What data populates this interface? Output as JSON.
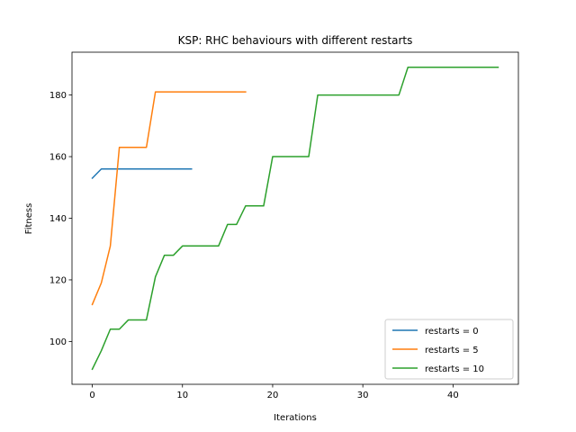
{
  "chart_data": {
    "type": "line",
    "title": "KSP: RHC behaviours with different restarts",
    "xlabel": "Iterations",
    "ylabel": "Fitness",
    "xlim": [
      -2.25,
      47.25
    ],
    "ylim": [
      86.1,
      193.9
    ],
    "xticks": [
      0,
      10,
      20,
      30,
      40
    ],
    "yticks": [
      100,
      120,
      140,
      160,
      180
    ],
    "grid": false,
    "legend_position": "lower-right",
    "series": [
      {
        "name": "restarts = 0",
        "color": "#1f77b4",
        "x": [
          0,
          1,
          2,
          3,
          4,
          5,
          6,
          7,
          8,
          9,
          10,
          11
        ],
        "y": [
          153,
          156,
          156,
          156,
          156,
          156,
          156,
          156,
          156,
          156,
          156,
          156
        ]
      },
      {
        "name": "restarts = 5",
        "color": "#ff7f0e",
        "x": [
          0,
          1,
          2,
          3,
          4,
          5,
          6,
          7,
          8,
          9,
          10,
          11,
          12,
          13,
          14,
          15,
          16,
          17
        ],
        "y": [
          112,
          119,
          131,
          163,
          163,
          163,
          163,
          181,
          181,
          181,
          181,
          181,
          181,
          181,
          181,
          181,
          181,
          181
        ]
      },
      {
        "name": "restarts = 10",
        "color": "#2ca02c",
        "x": [
          0,
          1,
          2,
          3,
          4,
          5,
          6,
          7,
          8,
          9,
          10,
          11,
          12,
          13,
          14,
          15,
          16,
          17,
          18,
          19,
          20,
          21,
          22,
          23,
          24,
          25,
          26,
          27,
          28,
          29,
          30,
          31,
          32,
          33,
          34,
          35,
          36,
          37,
          38,
          39,
          40,
          41,
          42,
          43,
          44,
          45
        ],
        "y": [
          91,
          97,
          104,
          104,
          107,
          107,
          107,
          121,
          128,
          128,
          131,
          131,
          131,
          131,
          131,
          138,
          138,
          144,
          144,
          144,
          160,
          160,
          160,
          160,
          160,
          180,
          180,
          180,
          180,
          180,
          180,
          180,
          180,
          180,
          180,
          189,
          189,
          189,
          189,
          189,
          189,
          189,
          189,
          189,
          189,
          189
        ]
      }
    ]
  }
}
